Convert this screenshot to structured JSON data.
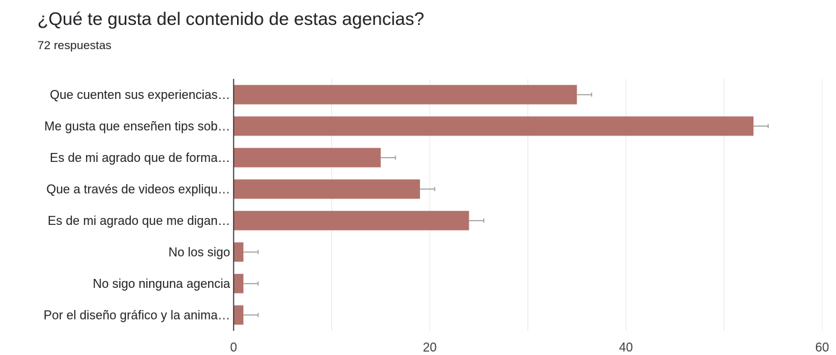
{
  "header": {
    "title": "¿Qué te gusta del contenido de estas agencias?",
    "responses": "72 respuestas"
  },
  "chart_data": {
    "type": "bar",
    "orientation": "horizontal",
    "title": "¿Qué te gusta del contenido de estas agencias?",
    "categories": [
      "Que cuenten sus experiencias…",
      "Me gusta que enseñen tips sob…",
      "Es de mi agrado que de forma…",
      "Que a través de videos expliqu…",
      "Es de mi agrado que me digan…",
      "No los sigo",
      "No sigo ninguna agencia",
      "Por el diseño gráfico y la anima…"
    ],
    "values": [
      35,
      53,
      15,
      19,
      24,
      1,
      1,
      1
    ],
    "xlim": [
      0,
      60
    ],
    "xticks": [
      0,
      20,
      40,
      60
    ],
    "xlabel": "",
    "ylabel": "",
    "grid": true,
    "error_bars": true,
    "bar_color": "#b3716c",
    "grid_color": "#e8e8e8",
    "axis_color": "#333333",
    "errorbar_color": "#9e9e9e"
  }
}
